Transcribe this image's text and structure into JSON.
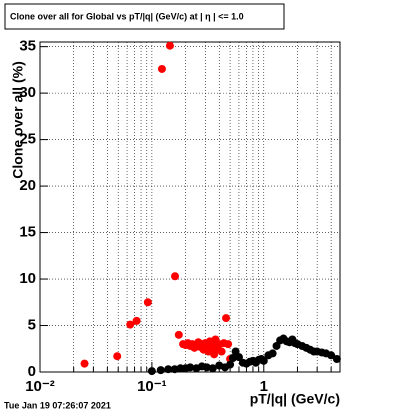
{
  "chart_data": {
    "type": "scatter",
    "title": "Clone  over all for Global vs pT/|q| (GeV/c) at |  η | <= 1.0",
    "xlabel": "pT/|q| (GeV/c)",
    "ylabel": "Clone  over all (%)",
    "footer": "Tue Jan 19 07:26:07 2021",
    "xscale": "log",
    "grid": true,
    "xlim": [
      0.01,
      4.8
    ],
    "ylim": [
      0,
      35.5
    ],
    "xticks": [
      {
        "value": 0.01,
        "label": "10⁻²"
      },
      {
        "value": 0.1,
        "label": "10⁻¹"
      },
      1
    ],
    "xminorticks": [
      0.02,
      0.03,
      0.04,
      0.05,
      0.06,
      0.07,
      0.08,
      0.09,
      0.2,
      0.3,
      0.4,
      0.5,
      0.6,
      0.7,
      0.8,
      0.9,
      2,
      3,
      4
    ],
    "yticks": [
      0,
      5,
      10,
      15,
      20,
      25,
      30,
      35
    ],
    "series": [
      {
        "color": "#ff0000",
        "x": [
          0.025,
          0.049,
          0.064,
          0.073,
          0.092,
          0.123,
          0.145,
          0.161,
          0.174,
          0.19,
          0.2,
          0.21,
          0.22,
          0.23,
          0.24,
          0.25,
          0.26,
          0.27,
          0.28,
          0.29,
          0.3,
          0.31,
          0.32,
          0.33,
          0.34,
          0.35,
          0.36,
          0.37,
          0.38,
          0.39,
          0.4,
          0.42,
          0.44,
          0.46,
          0.48,
          0.5
        ],
        "values": [
          0.9,
          1.7,
          5.1,
          5.5,
          7.5,
          32.6,
          35.1,
          10.3,
          4.0,
          3.0,
          2.9,
          3.1,
          2.8,
          3.0,
          2.6,
          2.9,
          3.2,
          2.7,
          3.0,
          2.4,
          3.1,
          2.8,
          2.2,
          3.3,
          2.6,
          3.0,
          1.9,
          3.5,
          2.8,
          2.5,
          3.0,
          2.2,
          3.1,
          5.8,
          3.0,
          1.4
        ]
      },
      {
        "color": "#000000",
        "x": [
          0.1,
          0.12,
          0.14,
          0.16,
          0.18,
          0.2,
          0.22,
          0.25,
          0.28,
          0.31,
          0.35,
          0.4,
          0.45,
          0.5,
          0.53,
          0.56,
          0.6,
          0.65,
          0.7,
          0.75,
          0.8,
          0.85,
          0.9,
          0.95,
          1.0,
          1.1,
          1.2,
          1.3,
          1.4,
          1.5,
          1.6,
          1.7,
          1.8,
          1.9,
          2.0,
          2.2,
          2.4,
          2.6,
          2.8,
          3.0,
          3.3,
          3.6,
          4.0,
          4.5
        ],
        "values": [
          0.1,
          0.2,
          0.3,
          0.3,
          0.4,
          0.4,
          0.5,
          0.4,
          0.6,
          0.5,
          0.4,
          0.7,
          0.5,
          0.8,
          1.5,
          2.2,
          1.6,
          1.0,
          0.9,
          1.1,
          1.2,
          1.0,
          1.3,
          1.4,
          1.2,
          1.8,
          2.0,
          2.8,
          3.4,
          3.6,
          3.3,
          3.2,
          3.5,
          3.1,
          3.0,
          2.8,
          2.6,
          2.4,
          2.2,
          2.2,
          2.1,
          2.0,
          1.8,
          1.4
        ]
      }
    ]
  }
}
